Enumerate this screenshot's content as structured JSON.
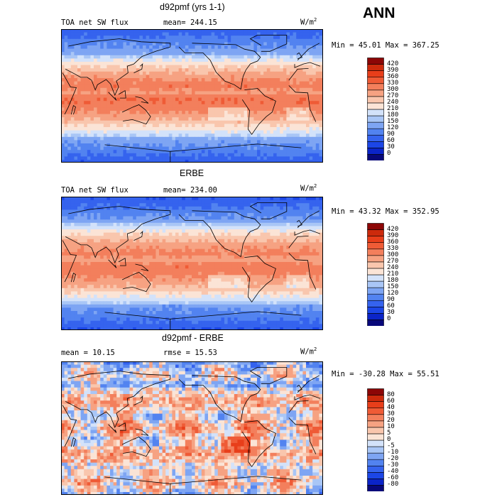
{
  "season": "ANN",
  "panels": [
    {
      "id": "model",
      "title": "d92pmf (yrs 1-1)",
      "left_label": "TOA net SW flux",
      "mid_label": "mean=",
      "mid_value": "244.15",
      "units": "W/m",
      "units_exp": "2",
      "minmax": "Min =  45.01 Max = 367.25",
      "field": "abs",
      "levels": [
        "0",
        "30",
        "60",
        "90",
        "120",
        "150",
        "180",
        "210",
        "240",
        "270",
        "300",
        "330",
        "360",
        "390",
        "420"
      ],
      "colors": [
        "#08087a",
        "#0b24c8",
        "#1c46e6",
        "#3563ee",
        "#5283f0",
        "#7ea5f3",
        "#a9c6f6",
        "#d3e2fa",
        "#fbe4d6",
        "#f9c6ad",
        "#f6a282",
        "#f37f5c",
        "#ef5b36",
        "#e83e1a",
        "#cc2a0c",
        "#8c0606"
      ]
    },
    {
      "id": "obs",
      "title": "ERBE",
      "left_label": "TOA net SW flux",
      "mid_label": "mean=",
      "mid_value": "234.00",
      "units": "W/m",
      "units_exp": "2",
      "minmax": "Min =  43.32 Max = 352.95",
      "field": "abs",
      "levels": [
        "0",
        "30",
        "60",
        "90",
        "120",
        "150",
        "180",
        "210",
        "240",
        "270",
        "300",
        "330",
        "360",
        "390",
        "420"
      ],
      "colors": [
        "#08087a",
        "#0b24c8",
        "#1c46e6",
        "#3563ee",
        "#5283f0",
        "#7ea5f3",
        "#a9c6f6",
        "#d3e2fa",
        "#fbe4d6",
        "#f9c6ad",
        "#f6a282",
        "#f37f5c",
        "#ef5b36",
        "#e83e1a",
        "#cc2a0c",
        "#8c0606"
      ]
    },
    {
      "id": "diff",
      "title": "d92pmf - ERBE",
      "left_label": "mean =  10.15",
      "mid_label": "rmse =",
      "mid_value": "15.53",
      "units": "W/m",
      "units_exp": "2",
      "minmax": "Min = -30.28 Max =  55.51",
      "field": "diff",
      "levels": [
        "-80",
        "-60",
        "-40",
        "-30",
        "-20",
        "-10",
        "-5",
        "0",
        "5",
        "10",
        "20",
        "30",
        "40",
        "60",
        "80"
      ],
      "colors": [
        "#08087a",
        "#0b24c8",
        "#1c46e6",
        "#3563ee",
        "#5283f0",
        "#7ea5f3",
        "#a9c6f6",
        "#d3e2fa",
        "#fbe4d6",
        "#f9c6ad",
        "#f6a282",
        "#f37f5c",
        "#ef5b36",
        "#e83e1a",
        "#cc2a0c",
        "#8c0606"
      ]
    }
  ]
}
